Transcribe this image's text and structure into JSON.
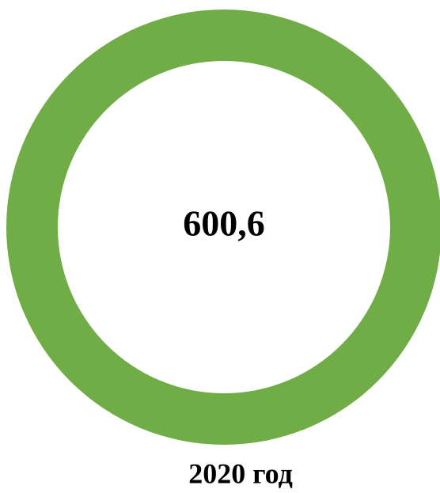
{
  "chart_data": {
    "type": "donut",
    "categories": [
      "2020 год"
    ],
    "values": [
      600.6
    ],
    "value_labels": [
      "600,6"
    ],
    "colors": [
      "#70ad47"
    ]
  }
}
